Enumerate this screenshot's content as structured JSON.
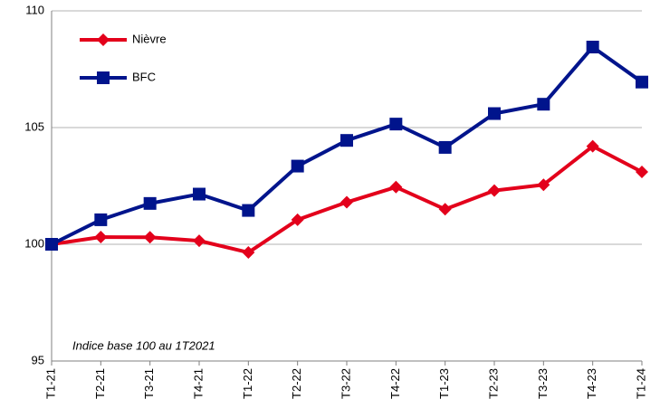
{
  "chart_data": {
    "type": "line",
    "annotation": "Indice base 100 au 1T2021",
    "categories": [
      "T1-21",
      "T2-21",
      "T3-21",
      "T4-21",
      "T1-22",
      "T2-22",
      "T3-22",
      "T4-22",
      "T1-23",
      "T2-23",
      "T3-23",
      "T4-23",
      "T1-24"
    ],
    "series": [
      {
        "name": "Nièvre",
        "color": "#e3001b",
        "marker": "diamond",
        "values": [
          100,
          100.31,
          100.3,
          100.15,
          99.65,
          101.05,
          101.8,
          102.45,
          101.5,
          102.3,
          102.55,
          104.2,
          103.1
        ]
      },
      {
        "name": "BFC",
        "color": "#00148c",
        "marker": "square",
        "values": [
          100,
          101.05,
          101.75,
          102.15,
          101.45,
          103.35,
          104.45,
          105.15,
          104.15,
          105.6,
          106.0,
          108.45,
          106.95
        ]
      }
    ],
    "ylim": [
      95,
      110
    ],
    "yticks": [
      95,
      100,
      105,
      110
    ],
    "grid": true
  }
}
